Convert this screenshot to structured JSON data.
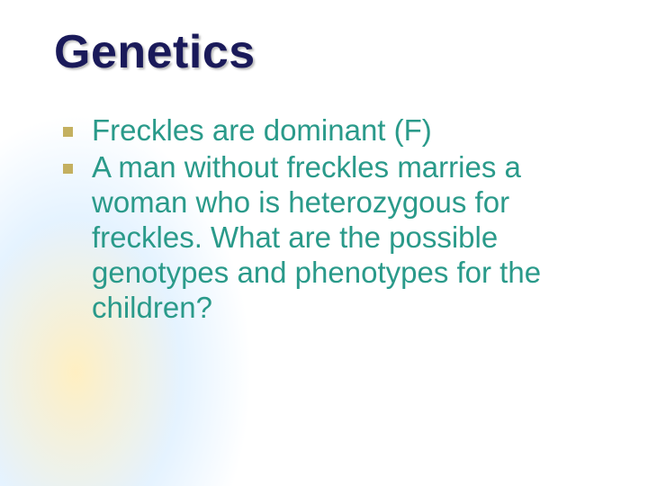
{
  "slide": {
    "title": "Genetics",
    "title_color": "#1a1a5a",
    "title_fontsize": 52,
    "body_color": "#2a9a8a",
    "body_fontsize": 33,
    "bullet_marker_color": "#c4b060",
    "bullet_marker_size": 11,
    "background_color": "#ffffff",
    "gradient_colors": [
      "#ffe8a0",
      "#cde4ff"
    ],
    "bullets": [
      {
        "text": "Freckles are dominant (F)"
      },
      {
        "text": "A man without freckles marries a woman who is heterozygous for freckles.  What are the possible genotypes and phenotypes for the children?"
      }
    ]
  }
}
